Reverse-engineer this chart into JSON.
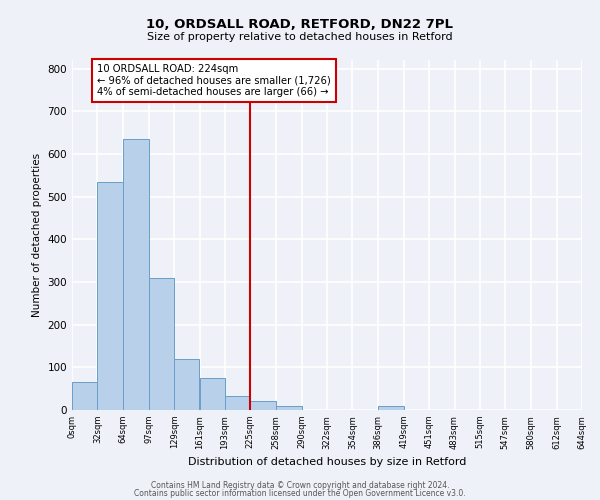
{
  "title1": "10, ORDSALL ROAD, RETFORD, DN22 7PL",
  "title2": "Size of property relative to detached houses in Retford",
  "xlabel": "Distribution of detached houses by size in Retford",
  "ylabel": "Number of detached properties",
  "bar_color": "#b8d0ea",
  "bar_edge_color": "#6a9ec8",
  "background_color": "#eef2f8",
  "grid_color": "#ffffff",
  "vline_x": 225,
  "vline_color": "#cc0000",
  "annotation_line1": "10 ORDSALL ROAD: 224sqm",
  "annotation_line2": "← 96% of detached houses are smaller (1,726)",
  "annotation_line3": "4% of semi-detached houses are larger (66) →",
  "bin_edges": [
    0,
    32,
    64,
    97,
    129,
    161,
    193,
    225,
    258,
    290,
    322,
    354,
    386,
    419,
    451,
    483,
    515,
    547,
    580,
    612,
    644
  ],
  "bin_heights": [
    65,
    535,
    635,
    310,
    120,
    75,
    32,
    20,
    10,
    0,
    0,
    0,
    10,
    0,
    0,
    0,
    0,
    0,
    0,
    0
  ],
  "ylim": [
    0,
    820
  ],
  "yticks": [
    0,
    100,
    200,
    300,
    400,
    500,
    600,
    700,
    800
  ],
  "xtick_labels": [
    "0sqm",
    "32sqm",
    "64sqm",
    "97sqm",
    "129sqm",
    "161sqm",
    "193sqm",
    "225sqm",
    "258sqm",
    "290sqm",
    "322sqm",
    "354sqm",
    "386sqm",
    "419sqm",
    "451sqm",
    "483sqm",
    "515sqm",
    "547sqm",
    "580sqm",
    "612sqm",
    "644sqm"
  ],
  "footer1": "Contains HM Land Registry data © Crown copyright and database right 2024.",
  "footer2": "Contains public sector information licensed under the Open Government Licence v3.0."
}
